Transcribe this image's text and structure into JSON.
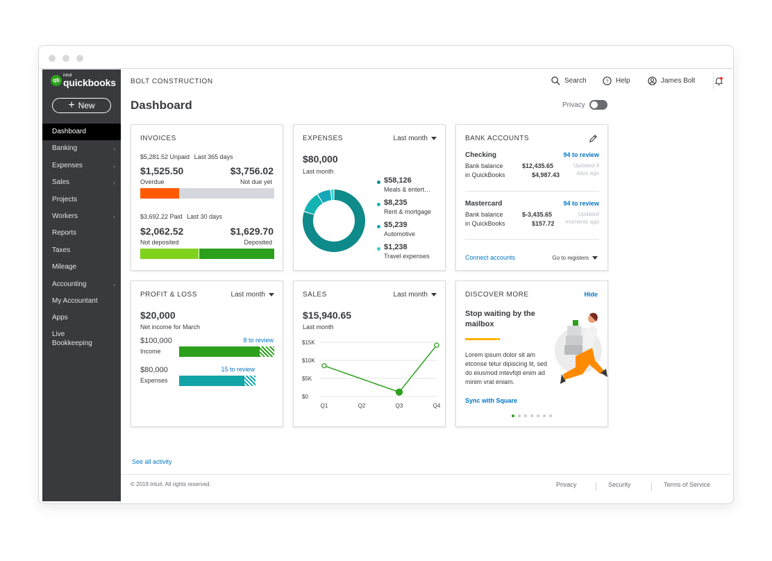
{
  "company": "BOLT CONSTRUCTION",
  "header": {
    "search": "Search",
    "help": "Help",
    "user": "James Bolt"
  },
  "page_title": "Dashboard",
  "privacy_label": "Privacy",
  "logo": {
    "intuit": "intuit",
    "brand": "quickbooks",
    "mark": "qb"
  },
  "new_button": "New",
  "sidebar": [
    {
      "label": "Dashboard",
      "active": true
    },
    {
      "label": "Banking",
      "chevron": true
    },
    {
      "label": "Expenses",
      "chevron": true
    },
    {
      "label": "Sales",
      "chevron": true
    },
    {
      "label": "Projects"
    },
    {
      "label": "Workers",
      "chevron": true
    },
    {
      "label": "Reports"
    },
    {
      "label": "Taxes"
    },
    {
      "label": "Mileage"
    },
    {
      "label": "Accounting",
      "chevron": true
    },
    {
      "label": "My Accountant"
    },
    {
      "label": "Apps"
    },
    {
      "label": "Live Bookkeeping"
    }
  ],
  "invoices": {
    "title": "INVOICES",
    "unpaid": "$5,281.52 Unpaid",
    "unpaid_period": "Last 365 days",
    "overdue_amount": "$1,525.50",
    "overdue_label": "Overdue",
    "notdue_amount": "$3,756.02",
    "notdue_label": "Not due yet",
    "paid": "$3,692.22 Paid",
    "paid_period": "Last 30 days",
    "notdeposited_amount": "$2,062.52",
    "notdeposited_label": "Not deposited",
    "deposited_amount": "$1,629.70",
    "deposited_label": "Deposited",
    "overdue_fraction": 0.29,
    "notdeposited_fraction": 0.44
  },
  "expenses": {
    "title": "EXPENSES",
    "period": "Last month",
    "total": "$80,000",
    "subtitle": "Last month",
    "items": [
      {
        "amount": "$58,126",
        "label": "Meals & entert…",
        "color": "#0e8a8a"
      },
      {
        "amount": "$8,235",
        "label": "Rent & mortgage",
        "color": "#14b3b3"
      },
      {
        "amount": "$5,239",
        "label": "Automotive",
        "color": "#15a7b8"
      },
      {
        "amount": "$1,238",
        "label": "Travel expenses",
        "color": "#2fd0d0"
      }
    ],
    "donut_values": [
      58126,
      8235,
      5239,
      1238
    ]
  },
  "bank": {
    "title": "BANK ACCOUNTS",
    "accounts": [
      {
        "name": "Checking",
        "review": "94 to review",
        "bank_label": "Bank balance",
        "bank_value": "$12,435.65",
        "qb_label": "in QuickBooks",
        "qb_value": "$4,987.43",
        "updated": "Updated 4 days ago"
      },
      {
        "name": "Mastercard",
        "review": "94 to review",
        "bank_label": "Bank balance",
        "bank_value": "$-3,435.65",
        "qb_label": "in QuickBooks",
        "qb_value": "$157.72",
        "updated": "Updated moments ago"
      }
    ],
    "connect": "Connect accounts",
    "registers": "Go to registers"
  },
  "pnl": {
    "title": "PROFIT & LOSS",
    "period": "Last month",
    "net": "$20,000",
    "net_label": "Net income for March",
    "income_amount": "$100,000",
    "income_label": "Income",
    "income_review": "8 to review",
    "expenses_amount": "$80,000",
    "expenses_label": "Expenses",
    "expenses_review": "15 to review",
    "income_fraction": 0.85,
    "expenses_fraction": 0.85,
    "income_color": "#2ca01c",
    "expenses_color": "#13a4a8"
  },
  "sales": {
    "title": "SALES",
    "period": "Last month",
    "total": "$15,940.65",
    "subtitle": "Last month"
  },
  "chart_data": {
    "type": "line",
    "categories": [
      "Q1",
      "Q2",
      "Q3",
      "Q4"
    ],
    "y_ticks": [
      "$0",
      "$5K",
      "$10K",
      "$15K"
    ],
    "ylim": [
      0,
      15
    ],
    "series": [
      {
        "values": [
          8.5,
          null,
          1.2,
          14.2
        ]
      }
    ],
    "color": "#2ca01c"
  },
  "discover": {
    "title": "DISCOVER MORE",
    "hide": "Hide",
    "headline": "Stop waiting by the mailbox",
    "body": "Lorem ipsum dolor sit am etconse tetur dipiscing lit, sed do eiusmod mtevfqti enim ad minim vrat eniam.",
    "cta": "Sync with Square",
    "dots": 7,
    "active_dot": 0
  },
  "see_all": "See all activity",
  "footer": {
    "copyright": "© 2019 Intuit. All rights reserved.",
    "links": [
      "Privacy",
      "Security",
      "Terms of Service"
    ]
  }
}
